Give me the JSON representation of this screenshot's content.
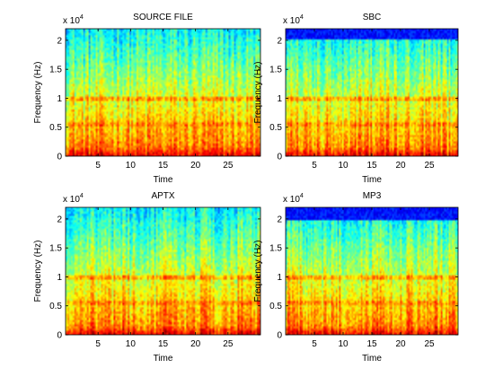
{
  "chart_data": [
    {
      "type": "heatmap",
      "title": "SOURCE FILE",
      "xlabel": "Time",
      "ylabel": "Frequency (Hz)",
      "exponent_label": {
        "base": "x 10",
        "power": "4"
      },
      "x_ticks": [
        5,
        10,
        15,
        20,
        25
      ],
      "y_ticks": [
        0,
        0.5,
        1,
        1.5,
        2
      ],
      "xlim": [
        0,
        30
      ],
      "ylim": [
        0,
        2.2
      ],
      "colormap": "jet",
      "cutoff_ylim": null
    },
    {
      "type": "heatmap",
      "title": "SBC",
      "xlabel": "Time",
      "ylabel": "Frequency (Hz)",
      "exponent_label": {
        "base": "x 10",
        "power": "4"
      },
      "x_ticks": [
        5,
        10,
        15,
        20,
        25
      ],
      "y_ticks": [
        0,
        0.5,
        1,
        1.5,
        2
      ],
      "xlim": [
        0,
        30
      ],
      "ylim": [
        0,
        2.2
      ],
      "colormap": "jet",
      "cutoff_ylim": 2.02
    },
    {
      "type": "heatmap",
      "title": "APTX",
      "xlabel": "Time",
      "ylabel": "Frequency (Hz)",
      "exponent_label": {
        "base": "x 10",
        "power": "4"
      },
      "x_ticks": [
        5,
        10,
        15,
        20,
        25
      ],
      "y_ticks": [
        0,
        0.5,
        1,
        1.5,
        2
      ],
      "xlim": [
        0,
        30
      ],
      "ylim": [
        0,
        2.2
      ],
      "colormap": "jet",
      "cutoff_ylim": null
    },
    {
      "type": "heatmap",
      "title": "MP3",
      "xlabel": "Time",
      "ylabel": "Frequency (Hz)",
      "exponent_label": {
        "base": "x 10",
        "power": "4"
      },
      "x_ticks": [
        5,
        10,
        15,
        20,
        25
      ],
      "y_ticks": [
        0,
        0.5,
        1,
        1.5,
        2
      ],
      "xlim": [
        0,
        30
      ],
      "ylim": [
        0,
        2.2
      ],
      "colormap": "jet",
      "cutoff_ylim": 1.98
    }
  ]
}
